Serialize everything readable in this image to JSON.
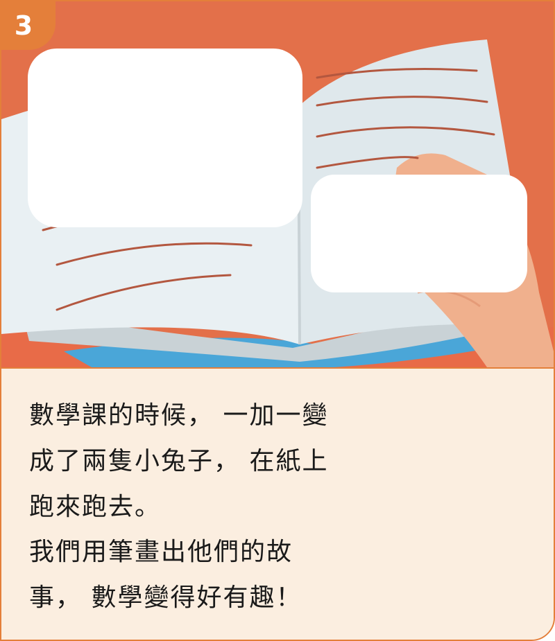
{
  "page": {
    "number": "3"
  },
  "story": {
    "lines": [
      "數學課的時候， 一加一變",
      "成了兩隻小兔子， 在紙上",
      "跑來跑去。",
      "我們用筆畫出他們的故",
      "事， 數學變得好有趣！"
    ]
  },
  "colors": {
    "background": "#e3704a",
    "accent": "#e47f3a",
    "panel": "#fbeee0",
    "page_paper": "#e9f0f3",
    "book_edge": "#4aa6d8",
    "hand": "#f0b08d",
    "text_lines": "#b3573f"
  }
}
